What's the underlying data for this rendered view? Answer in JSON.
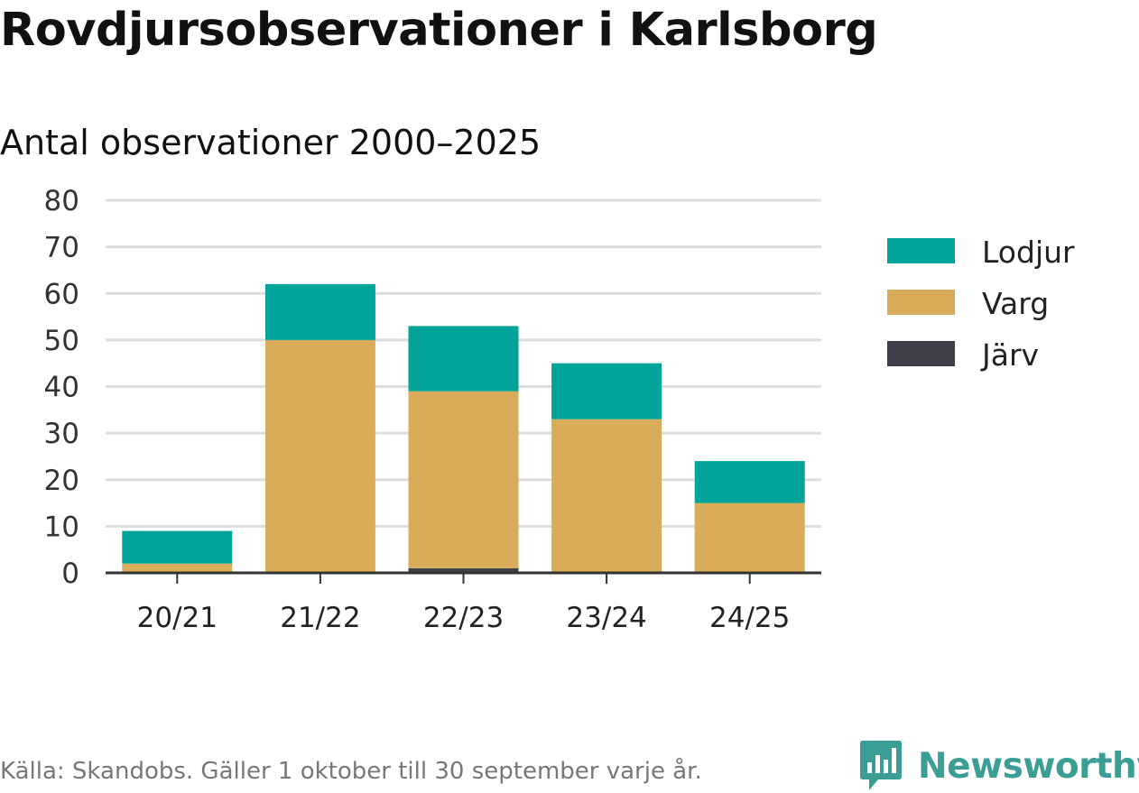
{
  "title": "Rovdjursobservationer i Karlsborg",
  "subtitle": "Antal observationer 2000–2025",
  "source": "Källa: Skandobs. Gäller 1 oktober till 30 september varje år.",
  "brand": {
    "name": "Newsworthy",
    "logo_icon": "newsworthy-logo-icon"
  },
  "colors": {
    "Lodjur": "#00a499",
    "Varg": "#d9ac5a",
    "Järv": "#3f3f4a",
    "grid": "#dddddd",
    "axis": "#333333"
  },
  "chart_data": {
    "type": "bar",
    "stacked": true,
    "categories": [
      "20/21",
      "21/22",
      "22/23",
      "23/24",
      "24/25"
    ],
    "series": [
      {
        "name": "Järv",
        "values": [
          0,
          0,
          1,
          0,
          0
        ]
      },
      {
        "name": "Varg",
        "values": [
          2,
          50,
          38,
          33,
          15
        ]
      },
      {
        "name": "Lodjur",
        "values": [
          7,
          12,
          14,
          12,
          9
        ]
      }
    ],
    "legend_order": [
      "Lodjur",
      "Varg",
      "Järv"
    ],
    "legend_position": "right",
    "ylim": [
      0,
      80
    ],
    "yticks": [
      0,
      10,
      20,
      30,
      40,
      50,
      60,
      70,
      80
    ],
    "grid": true
  }
}
